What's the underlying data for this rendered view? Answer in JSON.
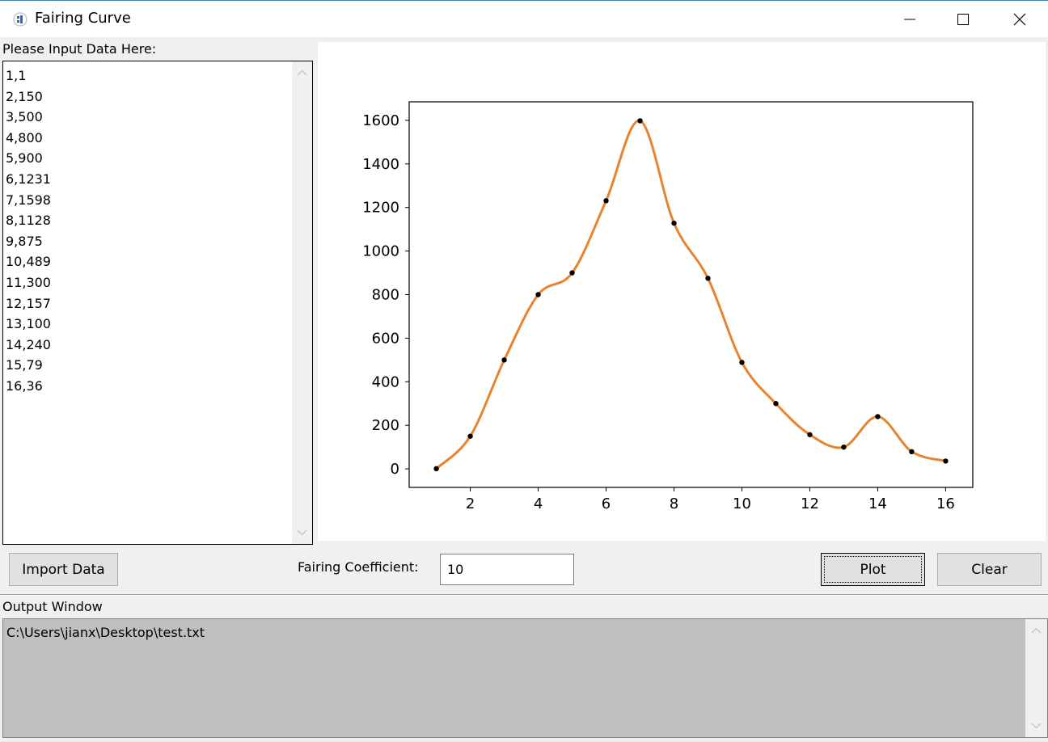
{
  "window": {
    "title": "Fairing Curve",
    "icon": "app-icon",
    "controls": [
      "minimize-icon",
      "maximize-icon",
      "close-icon"
    ]
  },
  "input_panel": {
    "label": "Please Input Data Here:",
    "lines": [
      "1,1",
      "2,150",
      "3,500",
      "4,800",
      "5,900",
      "6,1231",
      "7,1598",
      "8,1128",
      "9,875",
      "10,489",
      "11,300",
      "12,157",
      "13,100",
      "14,240",
      "15,79",
      "16,36"
    ]
  },
  "controls": {
    "import_label": "Import Data",
    "coef_label": "Fairing Coefficient:",
    "coef_value": "10",
    "plot_label": "Plot",
    "clear_label": "Clear"
  },
  "output": {
    "label": "Output Window",
    "text": "C:\\Users\\jianx\\Desktop\\test.txt"
  },
  "chart_data": {
    "type": "line",
    "title": "",
    "xlabel": "",
    "ylabel": "",
    "x": [
      1,
      2,
      3,
      4,
      5,
      6,
      7,
      8,
      9,
      10,
      11,
      12,
      13,
      14,
      15,
      16
    ],
    "series": [
      {
        "kind": "scatter",
        "values": [
          1,
          150,
          500,
          800,
          900,
          1231,
          1598,
          1128,
          875,
          489,
          300,
          157,
          100,
          240,
          79,
          36
        ],
        "color": "#000000"
      },
      {
        "kind": "smooth-line",
        "values": [
          1,
          150,
          500,
          800,
          900,
          1231,
          1598,
          1128,
          875,
          489,
          300,
          157,
          100,
          240,
          79,
          36
        ],
        "color": "#e8832f"
      }
    ],
    "xlim": [
      0.2,
      16.8
    ],
    "ylim": [
      -85,
      1685
    ],
    "xticks": [
      2,
      4,
      6,
      8,
      10,
      12,
      14,
      16
    ],
    "yticks": [
      0,
      200,
      400,
      600,
      800,
      1000,
      1200,
      1400,
      1600
    ],
    "grid": false,
    "legend": "none"
  }
}
